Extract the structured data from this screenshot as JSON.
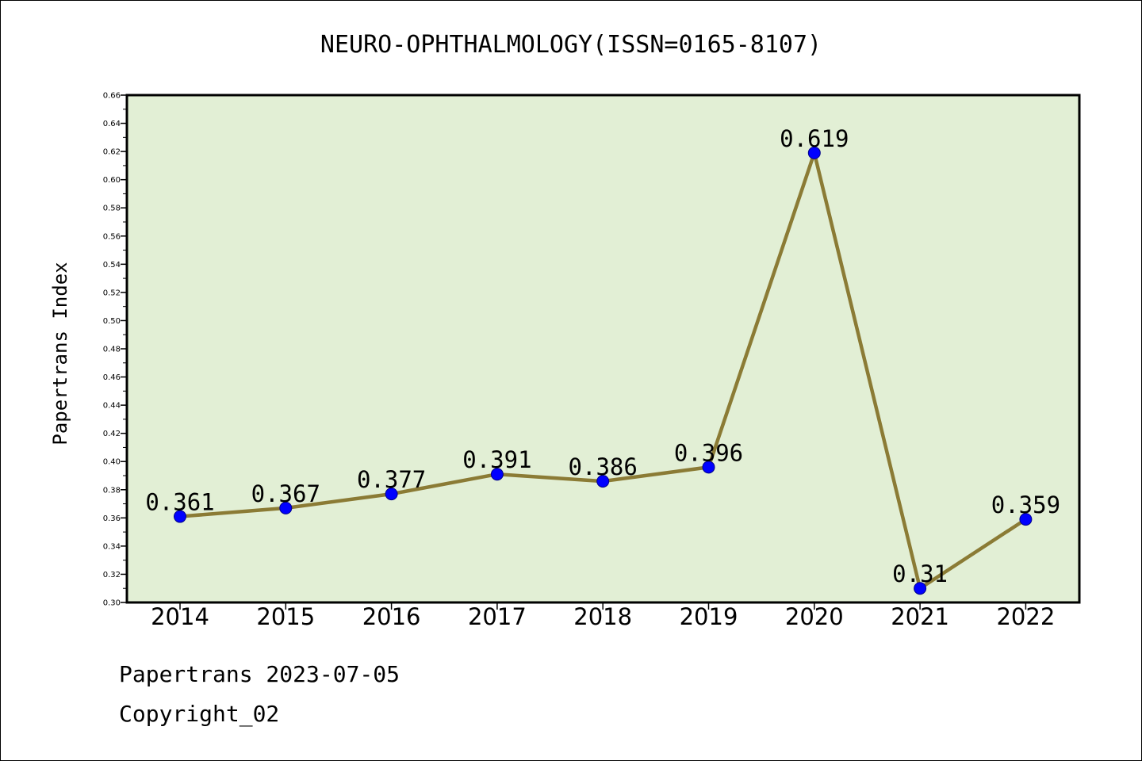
{
  "chart_data": {
    "type": "line",
    "title": "NEURO-OPHTHALMOLOGY(ISSN=0165-8107)",
    "xlabel": "",
    "ylabel": "Papertrans Index",
    "categories": [
      "2014",
      "2015",
      "2016",
      "2017",
      "2018",
      "2019",
      "2020",
      "2021",
      "2022"
    ],
    "series": [
      {
        "values": [
          0.361,
          0.367,
          0.377,
          0.391,
          0.386,
          0.396,
          0.619,
          0.31,
          0.359
        ],
        "value_labels": [
          "0.361",
          "0.367",
          "0.377",
          "0.391",
          "0.386",
          "0.396",
          "0.619",
          "0.31",
          "0.359"
        ]
      }
    ],
    "ylim": [
      0.3,
      0.66
    ],
    "yticks": [
      "0.30",
      "0.32",
      "0.34",
      "0.36",
      "0.38",
      "0.40",
      "0.42",
      "0.44",
      "0.46",
      "0.48",
      "0.50",
      "0.52",
      "0.54",
      "0.56",
      "0.58",
      "0.60",
      "0.62",
      "0.64",
      "0.66"
    ],
    "grid": false,
    "colors": {
      "plot_background": "#e2efd5",
      "line": "#8b7b35",
      "marker": "#0000ff"
    }
  },
  "footer": {
    "date_line": "Papertrans 2023-07-05",
    "copyright": "Copyright_02"
  }
}
